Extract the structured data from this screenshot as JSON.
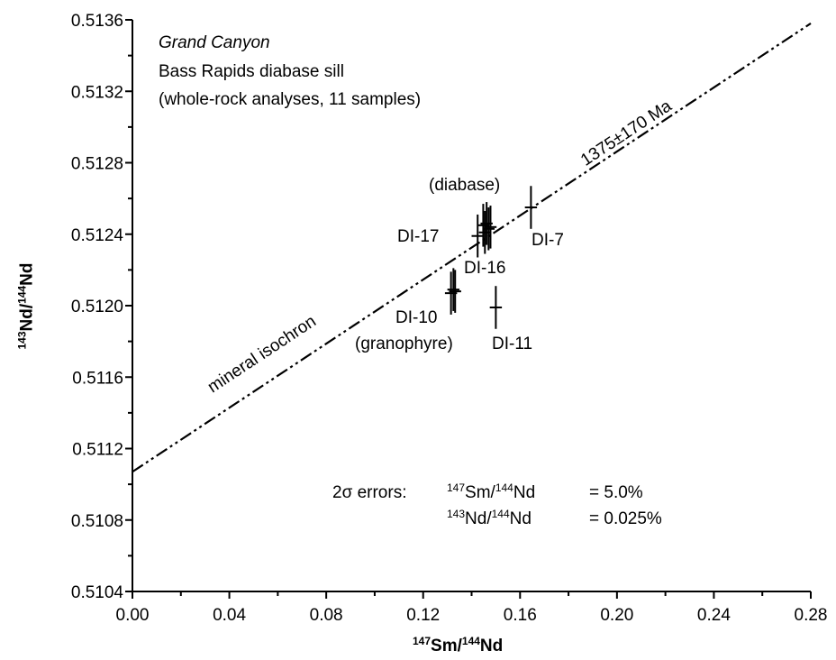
{
  "chart_data": {
    "type": "scatter",
    "x_axis": {
      "label_base": "Sm/",
      "label_sup1": "147",
      "label_sup2": "144",
      "label_end": "Nd",
      "range": [
        0.0,
        0.28
      ],
      "ticks": [
        "0.00",
        "0.04",
        "0.08",
        "0.12",
        "0.16",
        "0.20",
        "0.24",
        "0.28"
      ]
    },
    "y_axis": {
      "label_sup1": "143",
      "label_base": "Nd/",
      "label_sup2": "144",
      "label_end": "Nd",
      "range": [
        0.5104,
        0.5136
      ],
      "ticks": [
        "0.5104",
        "0.5108",
        "0.5112",
        "0.5116",
        "0.5120",
        "0.5124",
        "0.5128",
        "0.5132",
        "0.5136"
      ]
    },
    "title_block": {
      "line1": "Grand Canyon",
      "line2": "Bass Rapids diabase sill",
      "line3": "(whole-rock analyses, 11 samples)"
    },
    "isochron": {
      "label_upper": "1375±170 Ma",
      "label_lower": "mineral isochron",
      "x": [
        0.0,
        0.28
      ],
      "y": [
        0.51107,
        0.51358
      ]
    },
    "points": [
      {
        "x": 0.1425,
        "y": 0.51239
      },
      {
        "x": 0.1448,
        "y": 0.51245
      },
      {
        "x": 0.1455,
        "y": 0.51241
      },
      {
        "x": 0.1462,
        "y": 0.51246
      },
      {
        "x": 0.147,
        "y": 0.51243
      },
      {
        "x": 0.1478,
        "y": 0.51244
      },
      {
        "x": 0.1645,
        "y": 0.51255
      },
      {
        "x": 0.1315,
        "y": 0.51207
      },
      {
        "x": 0.1325,
        "y": 0.51209
      },
      {
        "x": 0.1332,
        "y": 0.51208
      },
      {
        "x": 0.15,
        "y": 0.51199
      }
    ],
    "point_labels": [
      "(diabase)",
      "DI-17",
      "DI-7",
      "DI-16",
      "DI-10",
      "(granophyre)",
      "DI-11"
    ],
    "errors_note": {
      "prefix": "2σ errors:",
      "row1_sup1": "147",
      "row1_mid": "Sm/",
      "row1_sup2": "144",
      "row1_end": "Nd",
      "row1_value": "=  5.0%",
      "row2_sup1": "143",
      "row2_mid": "Nd/",
      "row2_sup2": "144",
      "row2_end": "Nd",
      "row2_value": "=  0.025%"
    },
    "grid": false,
    "error_cross": {
      "sx": 0.0025,
      "sy": 0.00012
    }
  }
}
